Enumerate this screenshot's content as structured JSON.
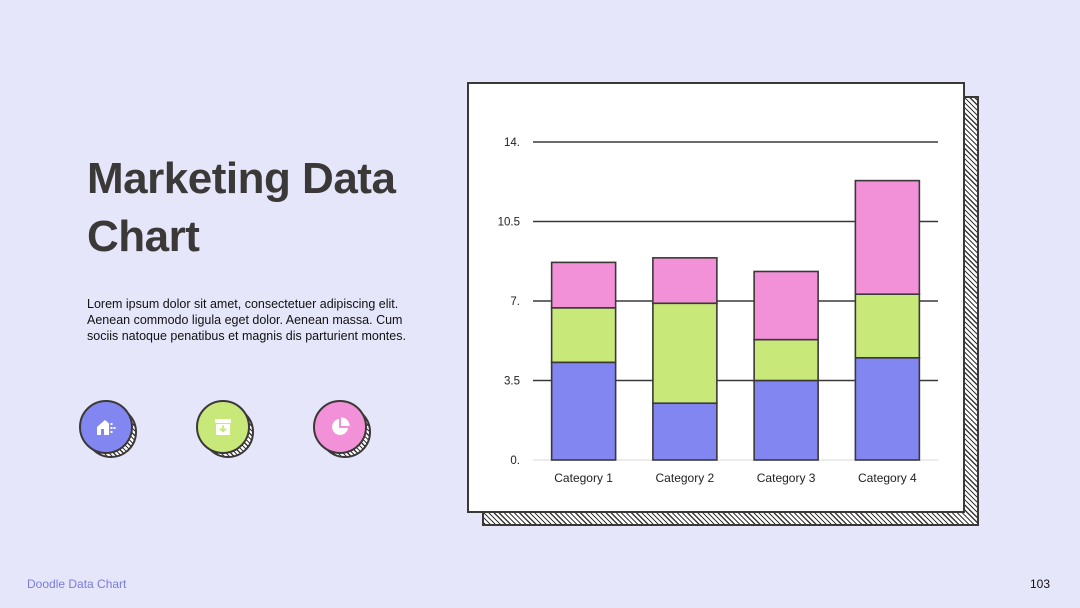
{
  "slide": {
    "title": "Marketing Data Chart",
    "body": "Lorem ipsum dolor sit amet, consectetuer adipiscing elit. Aenean commodo ligula eget dolor. Aenean massa. Cum sociis natoque penatibus et magnis dis parturient montes.",
    "footer_left": "Doodle Data Chart",
    "page_number": "103"
  },
  "icons": [
    {
      "name": "house-icon",
      "color": "#8286f0"
    },
    {
      "name": "archive-download-icon",
      "color": "#c8e87a"
    },
    {
      "name": "pie-chart-icon",
      "color": "#f291d8"
    }
  ],
  "colors": {
    "series1": "#8286f0",
    "series2": "#c8e87a",
    "series3": "#f291d8",
    "outline": "#3b3838"
  },
  "chart_data": {
    "type": "bar",
    "stacked": true,
    "categories": [
      "Category 1",
      "Category 2",
      "Category 3",
      "Category 4"
    ],
    "series": [
      {
        "values": [
          4.3,
          2.5,
          3.5,
          4.5
        ]
      },
      {
        "values": [
          2.4,
          4.4,
          1.8,
          2.8
        ]
      },
      {
        "values": [
          2.0,
          2.0,
          3.0,
          5.0
        ]
      }
    ],
    "y_ticks": [
      "0.",
      "3.5",
      "7.",
      "10.5",
      "14."
    ],
    "ylim": [
      0,
      14
    ],
    "grid": true,
    "legend": "none"
  }
}
